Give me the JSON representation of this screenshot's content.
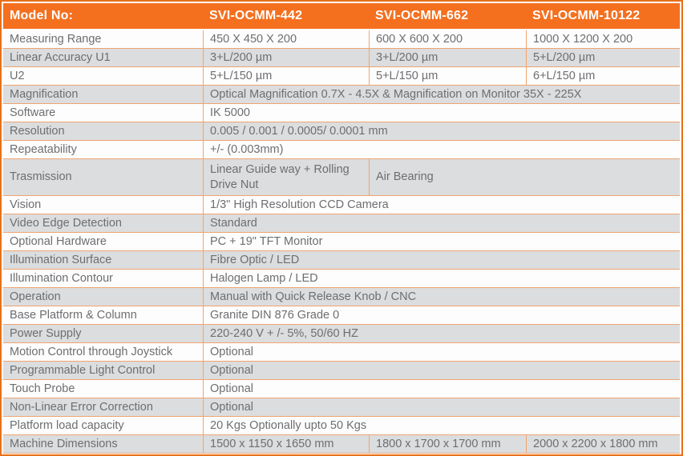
{
  "colors": {
    "header_bg": "#f4701f",
    "outer_border": "#e8701a",
    "grid_line": "#f0a470",
    "shaded_row_bg": "#dcddde",
    "row_bg": "#fdfdfd",
    "text": "#6d6e71",
    "header_text": "#ffffff"
  },
  "table": {
    "header": {
      "model_label": "Model No:",
      "columns": [
        "SVI-OCMM-442",
        "SVI-OCMM-662",
        "SVI-OCMM-10122"
      ]
    },
    "rows": [
      {
        "label": "Measuring Range",
        "shaded": false,
        "cells": [
          {
            "text": "450 X 450 X 200",
            "span": 1
          },
          {
            "text": "600 X 600 X 200",
            "span": 1
          },
          {
            "text": "1000 X 1200 X 200",
            "span": 1
          }
        ]
      },
      {
        "label": "Linear Accuracy U1",
        "shaded": true,
        "cells": [
          {
            "text": "3+L/200 µm",
            "span": 1
          },
          {
            "text": "3+L/200 µm",
            "span": 1
          },
          {
            "text": "5+L/200 µm",
            "span": 1
          }
        ]
      },
      {
        "label": "U2",
        "shaded": false,
        "cells": [
          {
            "text": "5+L/150 µm",
            "span": 1
          },
          {
            "text": "5+L/150 µm",
            "span": 1
          },
          {
            "text": "6+L/150 µm",
            "span": 1
          }
        ]
      },
      {
        "label": "Magnification",
        "shaded": true,
        "cells": [
          {
            "text": "Optical Magnification 0.7X - 4.5X & Magnification on Monitor 35X - 225X",
            "span": 3
          }
        ]
      },
      {
        "label": "Software",
        "shaded": false,
        "cells": [
          {
            "text": "IK 5000",
            "span": 3
          }
        ]
      },
      {
        "label": "Resolution",
        "shaded": true,
        "cells": [
          {
            "text": "0.005 / 0.001 / 0.0005/ 0.0001 mm",
            "span": 3
          }
        ]
      },
      {
        "label": "Repeatability",
        "shaded": false,
        "cells": [
          {
            "text": "+/- (0.003mm)",
            "span": 3
          }
        ]
      },
      {
        "label": "Trasmission",
        "shaded": true,
        "tall": true,
        "cells": [
          {
            "text": "Linear Guide way + Rolling Drive Nut",
            "span": 1
          },
          {
            "text": "Air Bearing",
            "span": 2
          }
        ]
      },
      {
        "label": "Vision",
        "shaded": false,
        "cells": [
          {
            "text": "1/3\" High Resolution CCD Camera",
            "span": 3
          }
        ]
      },
      {
        "label": "Video Edge Detection",
        "shaded": true,
        "cells": [
          {
            "text": "Standard",
            "span": 3
          }
        ]
      },
      {
        "label": "Optional Hardware",
        "shaded": false,
        "cells": [
          {
            "text": "PC + 19\" TFT Monitor",
            "span": 3
          }
        ]
      },
      {
        "label": "Illumination Surface",
        "shaded": true,
        "cells": [
          {
            "text": "Fibre Optic / LED",
            "span": 3
          }
        ]
      },
      {
        "label": "Illumination Contour",
        "shaded": false,
        "cells": [
          {
            "text": "Halogen Lamp / LED",
            "span": 3
          }
        ]
      },
      {
        "label": "Operation",
        "shaded": true,
        "cells": [
          {
            "text": "Manual with Quick Release Knob / CNC",
            "span": 3
          }
        ]
      },
      {
        "label": "Base Platform & Column",
        "shaded": false,
        "cells": [
          {
            "text": "Granite DIN 876 Grade 0",
            "span": 3
          }
        ]
      },
      {
        "label": "Power Supply",
        "shaded": true,
        "cells": [
          {
            "text": "220-240 V + /- 5%, 50/60 HZ",
            "span": 3
          }
        ]
      },
      {
        "label": "Motion Control through Joystick",
        "shaded": false,
        "cells": [
          {
            "text": "Optional",
            "span": 3
          }
        ]
      },
      {
        "label": "Programmable Light Control",
        "shaded": true,
        "cells": [
          {
            "text": "Optional",
            "span": 3
          }
        ]
      },
      {
        "label": "Touch Probe",
        "shaded": false,
        "cells": [
          {
            "text": "Optional",
            "span": 3
          }
        ]
      },
      {
        "label": "Non-Linear Error Correction",
        "shaded": true,
        "cells": [
          {
            "text": "Optional",
            "span": 3
          }
        ]
      },
      {
        "label": "Platform load capacity",
        "shaded": false,
        "cells": [
          {
            "text": "20 Kgs Optionally upto 50 Kgs",
            "span": 3
          }
        ]
      },
      {
        "label": "Machine Dimensions",
        "shaded": true,
        "cells": [
          {
            "text": "1500 x 1150 x 1650 mm",
            "span": 1
          },
          {
            "text": "1800 x 1700 x 1700 mm",
            "span": 1
          },
          {
            "text": "2000 x 2200 x 1800 mm",
            "span": 1
          }
        ]
      }
    ]
  }
}
